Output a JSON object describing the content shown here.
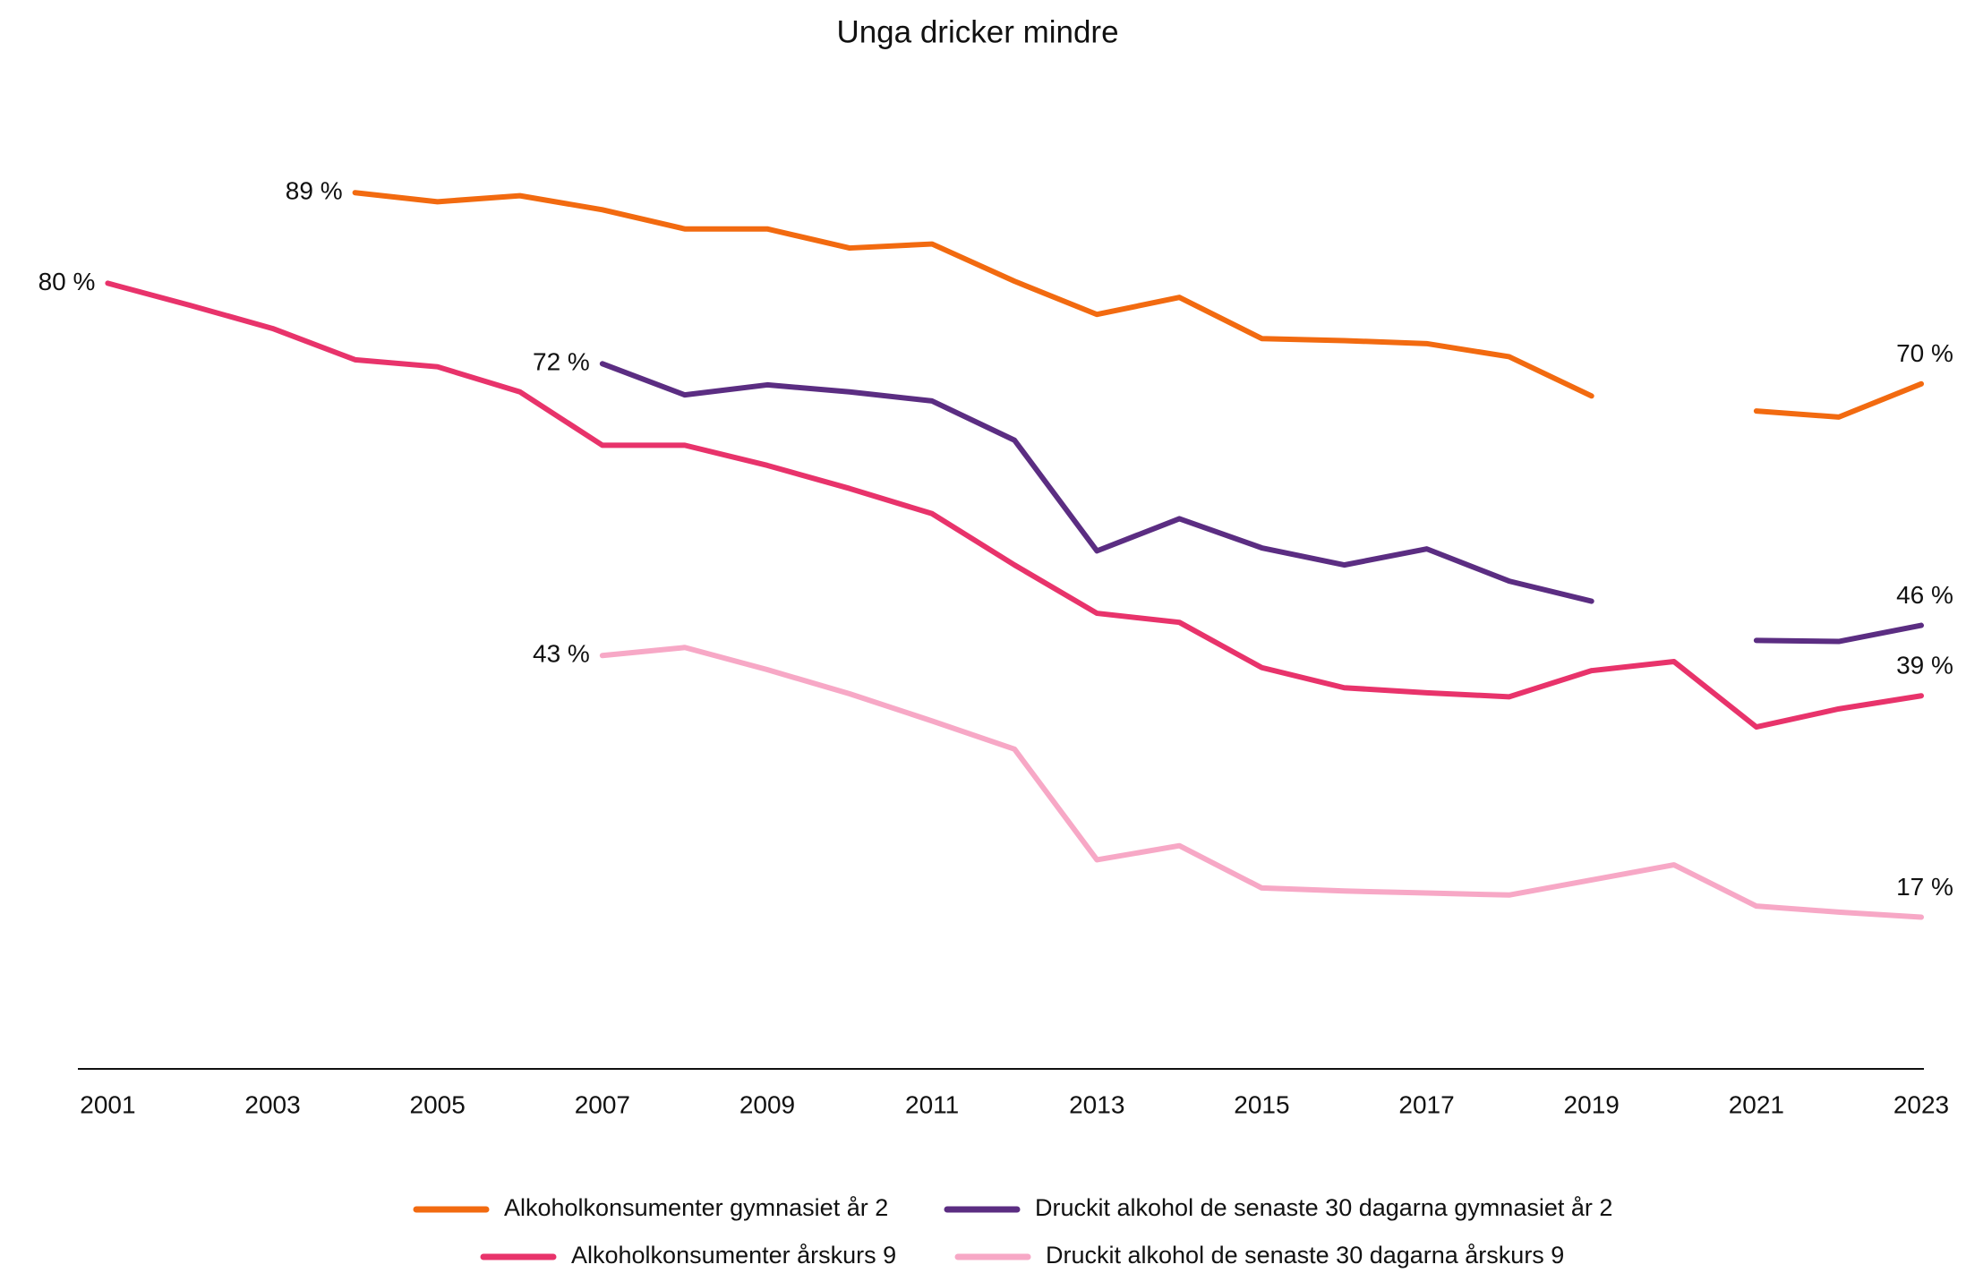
{
  "chart_data": {
    "type": "line",
    "title": "Unga dricker mindre",
    "x": [
      2001,
      2002,
      2003,
      2004,
      2005,
      2006,
      2007,
      2008,
      2009,
      2010,
      2011,
      2012,
      2013,
      2014,
      2015,
      2016,
      2017,
      2018,
      2019,
      2020,
      2021,
      2022,
      2023
    ],
    "xlim": [
      2001,
      2023
    ],
    "xticks": [
      2001,
      2003,
      2005,
      2007,
      2009,
      2011,
      2013,
      2015,
      2017,
      2019,
      2021,
      2023
    ],
    "ylim": [
      0,
      100
    ],
    "grid": false,
    "series": [
      {
        "name": "Alkoholkonsumenter gymnasiet år 2",
        "color": "#f26a10",
        "values": [
          null,
          null,
          null,
          89,
          88.1,
          88.7,
          87.3,
          85.4,
          85.4,
          83.5,
          83.9,
          80.2,
          76.9,
          78.6,
          74.5,
          74.3,
          74,
          72.7,
          68.8,
          null,
          67.3,
          66.7,
          70
        ],
        "value_labels": [
          null,
          null,
          null,
          "89 %",
          null,
          null,
          null,
          null,
          null,
          null,
          null,
          null,
          null,
          null,
          null,
          null,
          null,
          null,
          null,
          null,
          null,
          null,
          "70 %"
        ]
      },
      {
        "name": "Druckit alkohol de senaste 30 dagarna gymnasiet år 2",
        "color": "#5b2d82",
        "values": [
          null,
          null,
          null,
          null,
          null,
          null,
          72,
          68.9,
          69.9,
          69.2,
          68.3,
          64.4,
          53.4,
          56.6,
          53.7,
          52,
          53.6,
          50.4,
          48.4,
          null,
          44.5,
          44.4,
          46
        ],
        "value_labels": [
          null,
          null,
          null,
          null,
          null,
          null,
          "72 %",
          null,
          null,
          null,
          null,
          null,
          null,
          null,
          null,
          null,
          null,
          null,
          null,
          null,
          null,
          null,
          "46 %"
        ]
      },
      {
        "name": "Alkoholkonsumenter årskurs 9",
        "color": "#e8336b",
        "values": [
          80,
          77.8,
          75.5,
          72.4,
          71.7,
          69.2,
          63.9,
          63.9,
          61.9,
          59.6,
          57.1,
          52,
          47.2,
          46.3,
          41.8,
          39.8,
          39.3,
          38.9,
          41.5,
          42.4,
          35.9,
          37.7,
          39
        ],
        "value_labels": [
          "80 %",
          null,
          null,
          null,
          null,
          null,
          null,
          null,
          null,
          null,
          null,
          null,
          null,
          null,
          null,
          null,
          null,
          null,
          null,
          null,
          null,
          null,
          "39 %"
        ]
      },
      {
        "name": "Druckit alkohol de senaste 30 dagarna årskurs 9",
        "color": "#f7a8c6",
        "values": [
          null,
          null,
          null,
          null,
          null,
          null,
          43,
          43.8,
          41.6,
          39.2,
          36.5,
          33.7,
          22.7,
          24.1,
          19.9,
          19.6,
          19.4,
          19.2,
          20.7,
          22.2,
          18.1,
          17.5,
          17
        ],
        "value_labels": [
          null,
          null,
          null,
          null,
          null,
          null,
          "43 %",
          null,
          null,
          null,
          null,
          null,
          null,
          null,
          null,
          null,
          null,
          null,
          null,
          null,
          null,
          null,
          "17 %"
        ]
      }
    ]
  }
}
